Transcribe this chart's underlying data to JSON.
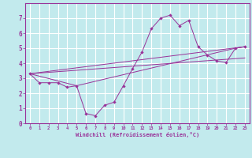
{
  "xlabel": "Windchill (Refroidissement éolien,°C)",
  "xlim": [
    -0.5,
    23.5
  ],
  "ylim": [
    0,
    8
  ],
  "yticks": [
    0,
    1,
    2,
    3,
    4,
    5,
    6,
    7
  ],
  "xticks": [
    0,
    1,
    2,
    3,
    4,
    5,
    6,
    7,
    8,
    9,
    10,
    11,
    12,
    13,
    14,
    15,
    16,
    17,
    18,
    19,
    20,
    21,
    22,
    23
  ],
  "background_color": "#c2eaed",
  "grid_color": "#ffffff",
  "line_color": "#993399",
  "main_line": {
    "x": [
      0,
      1,
      2,
      3,
      4,
      5,
      6,
      7,
      8,
      9,
      10,
      11,
      12,
      13,
      14,
      15,
      16,
      17,
      18,
      19,
      20,
      21,
      22,
      23
    ],
    "y": [
      3.3,
      2.7,
      2.7,
      2.7,
      2.4,
      2.5,
      0.65,
      0.5,
      1.2,
      1.4,
      2.5,
      3.65,
      4.75,
      6.3,
      7.0,
      7.2,
      6.5,
      6.85,
      5.1,
      4.55,
      4.15,
      4.05,
      5.0,
      5.1
    ]
  },
  "extra_lines": [
    {
      "x": [
        0,
        5,
        22,
        23
      ],
      "y": [
        3.3,
        2.5,
        5.0,
        5.1
      ]
    },
    {
      "x": [
        0,
        23
      ],
      "y": [
        3.3,
        4.35
      ]
    },
    {
      "x": [
        0,
        23
      ],
      "y": [
        3.3,
        5.1
      ]
    }
  ]
}
